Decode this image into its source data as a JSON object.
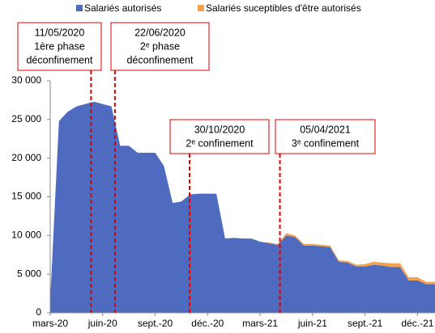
{
  "chart_data": {
    "type": "area",
    "categories": [
      "mars-20",
      null,
      null,
      null,
      null,
      null,
      "juin-20",
      null,
      null,
      null,
      null,
      null,
      "sept.-20",
      null,
      null,
      null,
      null,
      null,
      "déc.-20",
      null,
      null,
      null,
      null,
      null,
      "mars-21",
      null,
      null,
      null,
      null,
      null,
      "juin-21",
      null,
      null,
      null,
      null,
      null,
      "sept.-21",
      null,
      null,
      null,
      null,
      null,
      "déc.-21",
      null,
      null
    ],
    "series": [
      {
        "name": "Salariés autorisés",
        "color": "#4f6bbf",
        "values": [
          1700,
          24800,
          26000,
          26700,
          27000,
          27300,
          27000,
          26700,
          21600,
          21600,
          20700,
          20700,
          20700,
          19000,
          14200,
          14400,
          15300,
          15400,
          15400,
          15400,
          9600,
          9700,
          9600,
          9600,
          9200,
          9000,
          8800,
          10000,
          9800,
          8700,
          8700,
          8600,
          8500,
          6600,
          6500,
          6000,
          6000,
          6200,
          6100,
          5900,
          5900,
          4200,
          4200,
          3700,
          3700
        ]
      },
      {
        "name": "Salariés suceptibles d'être autorisés",
        "color": "#f5a04a",
        "values": [
          0,
          0,
          0,
          0,
          0,
          0,
          0,
          0,
          0,
          0,
          0,
          0,
          0,
          0,
          0,
          0,
          0,
          0,
          0,
          0,
          0,
          0,
          0,
          0,
          0,
          100,
          100,
          300,
          200,
          200,
          200,
          200,
          200,
          200,
          200,
          200,
          300,
          400,
          400,
          500,
          500,
          400,
          400,
          300,
          300
        ]
      }
    ],
    "ylim": [
      0,
      30000
    ],
    "yticks": [
      0,
      {
        "value": 5000,
        "label": "5 000"
      },
      {
        "value": 10000,
        "label": "10 000"
      },
      {
        "value": 15000,
        "label": "15 000"
      },
      {
        "value": 20000,
        "label": "20 000"
      },
      {
        "value": 25000,
        "label": "25 000"
      },
      {
        "value": 30000,
        "label": "30 000"
      }
    ],
    "legend": "top",
    "annotations": [
      {
        "lines": [
          "11/05/2020",
          "1ère phase",
          "déconfinement"
        ]
      },
      {
        "lines": [
          "22/06/2020",
          "2ᵉ phase",
          "déconfinement"
        ]
      },
      {
        "lines": [
          "30/10/2020",
          "2ᵉ confinement"
        ]
      },
      {
        "lines": [
          "05/04/2021",
          "3ᵉ confinement"
        ]
      }
    ]
  }
}
